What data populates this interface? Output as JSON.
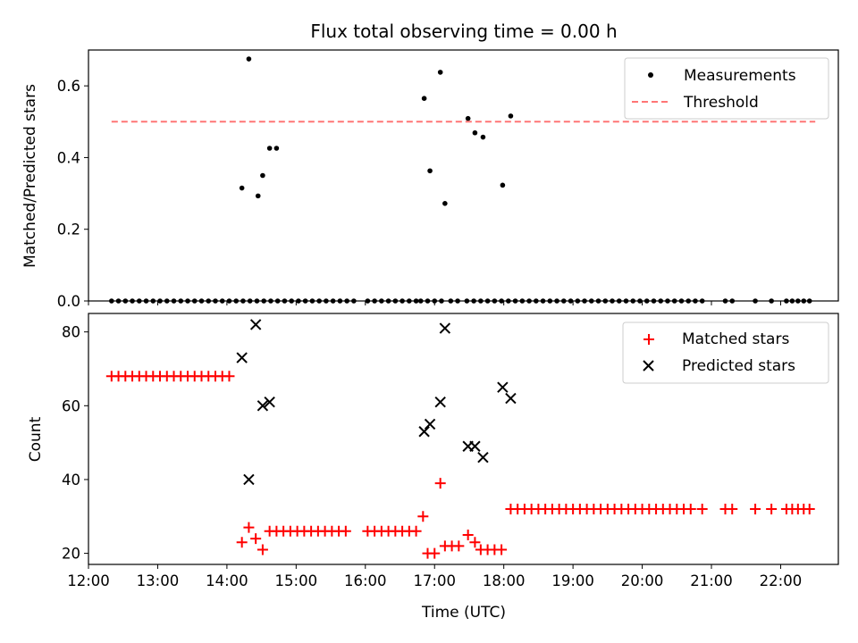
{
  "chart_data": [
    {
      "type": "scatter",
      "title": "Flux total observing time = 0.00 h",
      "xlabel": "",
      "ylabel": "Matched/Predicted stars",
      "xlim": [
        "12:00",
        "22:50"
      ],
      "ylim": [
        0,
        0.7
      ],
      "yticks": [
        0.0,
        0.2,
        0.4,
        0.6
      ],
      "yticklabels": [
        "0.0",
        "0.2",
        "0.4",
        "0.6"
      ],
      "xticks_shown": false,
      "legend_position": "top-right",
      "series": [
        {
          "name": "Measurements",
          "kind": "scatter",
          "marker": "dot",
          "color": "#000000",
          "x": [
            "12:20",
            "12:26",
            "12:32",
            "12:38",
            "12:44",
            "12:50",
            "12:56",
            "13:02",
            "13:08",
            "13:14",
            "13:20",
            "13:26",
            "13:32",
            "13:38",
            "13:44",
            "13:50",
            "13:56",
            "14:02",
            "14:08",
            "14:14",
            "14:20",
            "14:26",
            "14:32",
            "14:38",
            "14:44",
            "14:50",
            "14:56",
            "15:02",
            "15:08",
            "15:14",
            "15:20",
            "15:26",
            "15:32",
            "15:38",
            "15:44",
            "15:50",
            "16:02",
            "16:08",
            "16:14",
            "16:20",
            "16:26",
            "16:32",
            "16:38",
            "16:44",
            "16:48",
            "16:54",
            "17:00",
            "17:06",
            "17:14",
            "17:20",
            "17:28",
            "17:34",
            "17:40",
            "17:46",
            "17:52",
            "17:58",
            "18:04",
            "18:10",
            "18:16",
            "18:22",
            "18:28",
            "18:34",
            "18:40",
            "18:46",
            "18:52",
            "18:58",
            "19:04",
            "19:10",
            "19:16",
            "19:22",
            "19:28",
            "19:34",
            "19:40",
            "19:46",
            "19:52",
            "19:58",
            "20:04",
            "20:10",
            "20:16",
            "20:22",
            "20:28",
            "20:34",
            "20:40",
            "20:46",
            "20:52",
            "21:12",
            "21:18",
            "21:38",
            "21:52",
            "22:05",
            "22:10",
            "22:15",
            "22:20",
            "22:25",
            "14:13",
            "14:19",
            "14:27",
            "14:31",
            "14:37",
            "14:43",
            "16:51",
            "16:56",
            "17:05",
            "17:09",
            "17:29",
            "17:35",
            "17:42",
            "17:59",
            "18:06"
          ],
          "y": [
            0,
            0,
            0,
            0,
            0,
            0,
            0,
            0,
            0,
            0,
            0,
            0,
            0,
            0,
            0,
            0,
            0,
            0,
            0,
            0,
            0,
            0,
            0,
            0,
            0,
            0,
            0,
            0,
            0,
            0,
            0,
            0,
            0,
            0,
            0,
            0,
            0,
            0,
            0,
            0,
            0,
            0,
            0,
            0,
            0,
            0,
            0,
            0,
            0,
            0,
            0,
            0,
            0,
            0,
            0,
            0,
            0,
            0,
            0,
            0,
            0,
            0,
            0,
            0,
            0,
            0,
            0,
            0,
            0,
            0,
            0,
            0,
            0,
            0,
            0,
            0,
            0,
            0,
            0,
            0,
            0,
            0,
            0,
            0,
            0,
            0,
            0,
            0,
            0,
            0,
            0,
            0,
            0,
            0,
            0.315,
            0.675,
            0.293,
            0.35,
            0.426,
            0.426,
            0.565,
            0.363,
            0.638,
            0.272,
            0.509,
            0.469,
            0.457,
            0.323,
            0.516
          ]
        },
        {
          "name": "Threshold",
          "kind": "line",
          "style": "dashed",
          "color": "#ff7575",
          "x": [
            "12:20",
            "22:30"
          ],
          "y": [
            0.5,
            0.5
          ]
        }
      ]
    },
    {
      "type": "scatter",
      "title": "",
      "xlabel": "Time (UTC)",
      "ylabel": "Count",
      "xlim": [
        "12:00",
        "22:50"
      ],
      "ylim": [
        17,
        85
      ],
      "yticks": [
        20,
        40,
        60,
        80
      ],
      "yticklabels": [
        "20",
        "40",
        "60",
        "80"
      ],
      "xticks": [
        "12:00",
        "13:00",
        "14:00",
        "15:00",
        "16:00",
        "17:00",
        "18:00",
        "19:00",
        "20:00",
        "21:00",
        "22:00"
      ],
      "legend_position": "top-right",
      "series": [
        {
          "name": "Matched stars",
          "kind": "scatter",
          "marker": "plus",
          "color": "#ff0000",
          "x": [
            "12:20",
            "12:26",
            "12:32",
            "12:38",
            "12:44",
            "12:50",
            "12:56",
            "13:02",
            "13:08",
            "13:14",
            "13:20",
            "13:26",
            "13:32",
            "13:38",
            "13:44",
            "13:50",
            "13:56",
            "14:02",
            "14:13",
            "14:19",
            "14:25",
            "14:31",
            "14:37",
            "14:43",
            "14:49",
            "14:55",
            "15:01",
            "15:07",
            "15:13",
            "15:19",
            "15:25",
            "15:31",
            "15:37",
            "15:43",
            "16:02",
            "16:08",
            "16:14",
            "16:20",
            "16:26",
            "16:32",
            "16:38",
            "16:44",
            "16:50",
            "16:54",
            "17:00",
            "17:05",
            "17:09",
            "17:15",
            "17:21",
            "17:29",
            "17:35",
            "17:40",
            "17:46",
            "17:52",
            "17:58",
            "18:06",
            "18:12",
            "18:18",
            "18:24",
            "18:30",
            "18:36",
            "18:42",
            "18:48",
            "18:54",
            "19:00",
            "19:06",
            "19:12",
            "19:18",
            "19:24",
            "19:30",
            "19:36",
            "19:42",
            "19:48",
            "19:54",
            "20:00",
            "20:06",
            "20:12",
            "20:18",
            "20:24",
            "20:30",
            "20:36",
            "20:42",
            "20:52",
            "21:12",
            "21:18",
            "21:38",
            "21:52",
            "22:05",
            "22:10",
            "22:15",
            "22:20",
            "22:25"
          ],
          "y": [
            68,
            68,
            68,
            68,
            68,
            68,
            68,
            68,
            68,
            68,
            68,
            68,
            68,
            68,
            68,
            68,
            68,
            68,
            23,
            27,
            24,
            21,
            26,
            26,
            26,
            26,
            26,
            26,
            26,
            26,
            26,
            26,
            26,
            26,
            26,
            26,
            26,
            26,
            26,
            26,
            26,
            26,
            30,
            20,
            20,
            39,
            22,
            22,
            22,
            25,
            23,
            21,
            21,
            21,
            21,
            32,
            32,
            32,
            32,
            32,
            32,
            32,
            32,
            32,
            32,
            32,
            32,
            32,
            32,
            32,
            32,
            32,
            32,
            32,
            32,
            32,
            32,
            32,
            32,
            32,
            32,
            32,
            32,
            32,
            32,
            32,
            32,
            32,
            32,
            32,
            32,
            32
          ]
        },
        {
          "name": "Predicted stars",
          "kind": "scatter",
          "marker": "x",
          "color": "#000000",
          "x": [
            "14:13",
            "14:19",
            "14:25",
            "14:31",
            "14:37",
            "16:51",
            "16:56",
            "17:05",
            "17:09",
            "17:29",
            "17:35",
            "17:42",
            "17:59",
            "18:06"
          ],
          "y": [
            73,
            40,
            82,
            60,
            61,
            53,
            55,
            61,
            81,
            49,
            49,
            46,
            65,
            62
          ]
        }
      ]
    }
  ]
}
